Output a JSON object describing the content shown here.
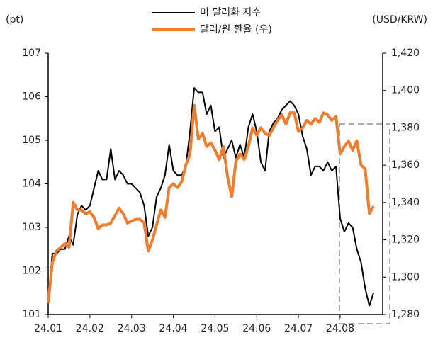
{
  "chart_data": {
    "type": "line",
    "y_label": "(pt)",
    "y2_label": "(USD/KRW)",
    "x": [
      0,
      0.1,
      0.2,
      0.3,
      0.4,
      0.5,
      0.6,
      0.7,
      0.8,
      0.9,
      1,
      1.1,
      1.2,
      1.3,
      1.4,
      1.5,
      1.6,
      1.7,
      1.8,
      1.9,
      2,
      2.1,
      2.2,
      2.3,
      2.4,
      2.5,
      2.6,
      2.7,
      2.8,
      2.9,
      3,
      3.1,
      3.2,
      3.3,
      3.4,
      3.5,
      3.6,
      3.7,
      3.8,
      3.9,
      4,
      4.1,
      4.2,
      4.3,
      4.4,
      4.5,
      4.6,
      4.7,
      4.8,
      4.9,
      5,
      5.1,
      5.2,
      5.3,
      5.4,
      5.5,
      5.6,
      5.7,
      5.8,
      5.9,
      6,
      6.1,
      6.2,
      6.3,
      6.4,
      6.5,
      6.6,
      6.7,
      6.8,
      6.9,
      7,
      7.1,
      7.2,
      7.3,
      7.4,
      7.5,
      7.6,
      7.7,
      7.8
    ],
    "xlim": [
      0,
      8.02
    ],
    "xticks": [
      {
        "value": 0,
        "label": "24.01"
      },
      {
        "value": 1,
        "label": "24.02"
      },
      {
        "value": 2,
        "label": "24.03"
      },
      {
        "value": 3,
        "label": "24.04"
      },
      {
        "value": 4,
        "label": "24.05"
      },
      {
        "value": 5,
        "label": "24.06"
      },
      {
        "value": 6,
        "label": "24.07"
      },
      {
        "value": 7,
        "label": "24.08"
      }
    ],
    "ylim": [
      101,
      107
    ],
    "yticks": [
      101,
      102,
      103,
      104,
      105,
      106,
      107
    ],
    "y2lim": [
      1280,
      1420
    ],
    "y2ticks": [
      {
        "value": 1280,
        "label": "1,280"
      },
      {
        "value": 1300,
        "label": "1,300"
      },
      {
        "value": 1320,
        "label": "1,320"
      },
      {
        "value": 1340,
        "label": "1,340"
      },
      {
        "value": 1360,
        "label": "1,360"
      },
      {
        "value": 1380,
        "label": "1,380"
      },
      {
        "value": 1400,
        "label": "1,400"
      },
      {
        "value": 1420,
        "label": "1,420"
      }
    ],
    "series": [
      {
        "name": "미 달러화 지수",
        "color": "#000000",
        "width": 2,
        "values": [
          101.3,
          102.4,
          102.4,
          102.5,
          102.5,
          102.8,
          102.6,
          103.3,
          103.5,
          103.4,
          103.5,
          103.9,
          104.3,
          104.1,
          104.1,
          104.8,
          104.1,
          104.3,
          104.2,
          104.0,
          104.0,
          103.9,
          103.8,
          103.5,
          102.8,
          103.0,
          103.7,
          103.9,
          104.2,
          104.9,
          104.3,
          104.2,
          104.2,
          104.4,
          105.2,
          106.2,
          106.1,
          106.1,
          105.6,
          105.8,
          105.2,
          105.3,
          104.6,
          104.8,
          105.0,
          104.6,
          104.9,
          104.6,
          105.3,
          105.6,
          105.2,
          104.5,
          104.3,
          105.2,
          105.4,
          105.5,
          105.7,
          105.8,
          105.9,
          105.8,
          105.6,
          105.1,
          104.8,
          104.2,
          104.4,
          104.4,
          104.3,
          104.5,
          104.3,
          104.4,
          103.2,
          102.9,
          103.1,
          103.0,
          102.5,
          102.2,
          101.6,
          101.2,
          101.5
        ]
      },
      {
        "name": "달러/원 환율 (우)",
        "color": "#ed7d31",
        "width": 4,
        "axis": "y2",
        "values": [
          1286,
          1308,
          1314,
          1316,
          1318,
          1316,
          1340,
          1336,
          1336,
          1334,
          1335,
          1332,
          1326,
          1328,
          1328,
          1329,
          1333,
          1337,
          1334,
          1329,
          1330,
          1331,
          1331,
          1329,
          1314,
          1320,
          1328,
          1336,
          1332,
          1348,
          1350,
          1348,
          1351,
          1360,
          1366,
          1392,
          1374,
          1377,
          1370,
          1372,
          1368,
          1363,
          1370,
          1354,
          1343,
          1362,
          1366,
          1363,
          1370,
          1380,
          1376,
          1380,
          1377,
          1376,
          1380,
          1384,
          1387,
          1382,
          1388,
          1388,
          1378,
          1380,
          1384,
          1382,
          1385,
          1383,
          1388,
          1387,
          1384,
          1386,
          1366,
          1370,
          1373,
          1368,
          1373,
          1360,
          1358,
          1334,
          1338
        ]
      }
    ]
  }
}
